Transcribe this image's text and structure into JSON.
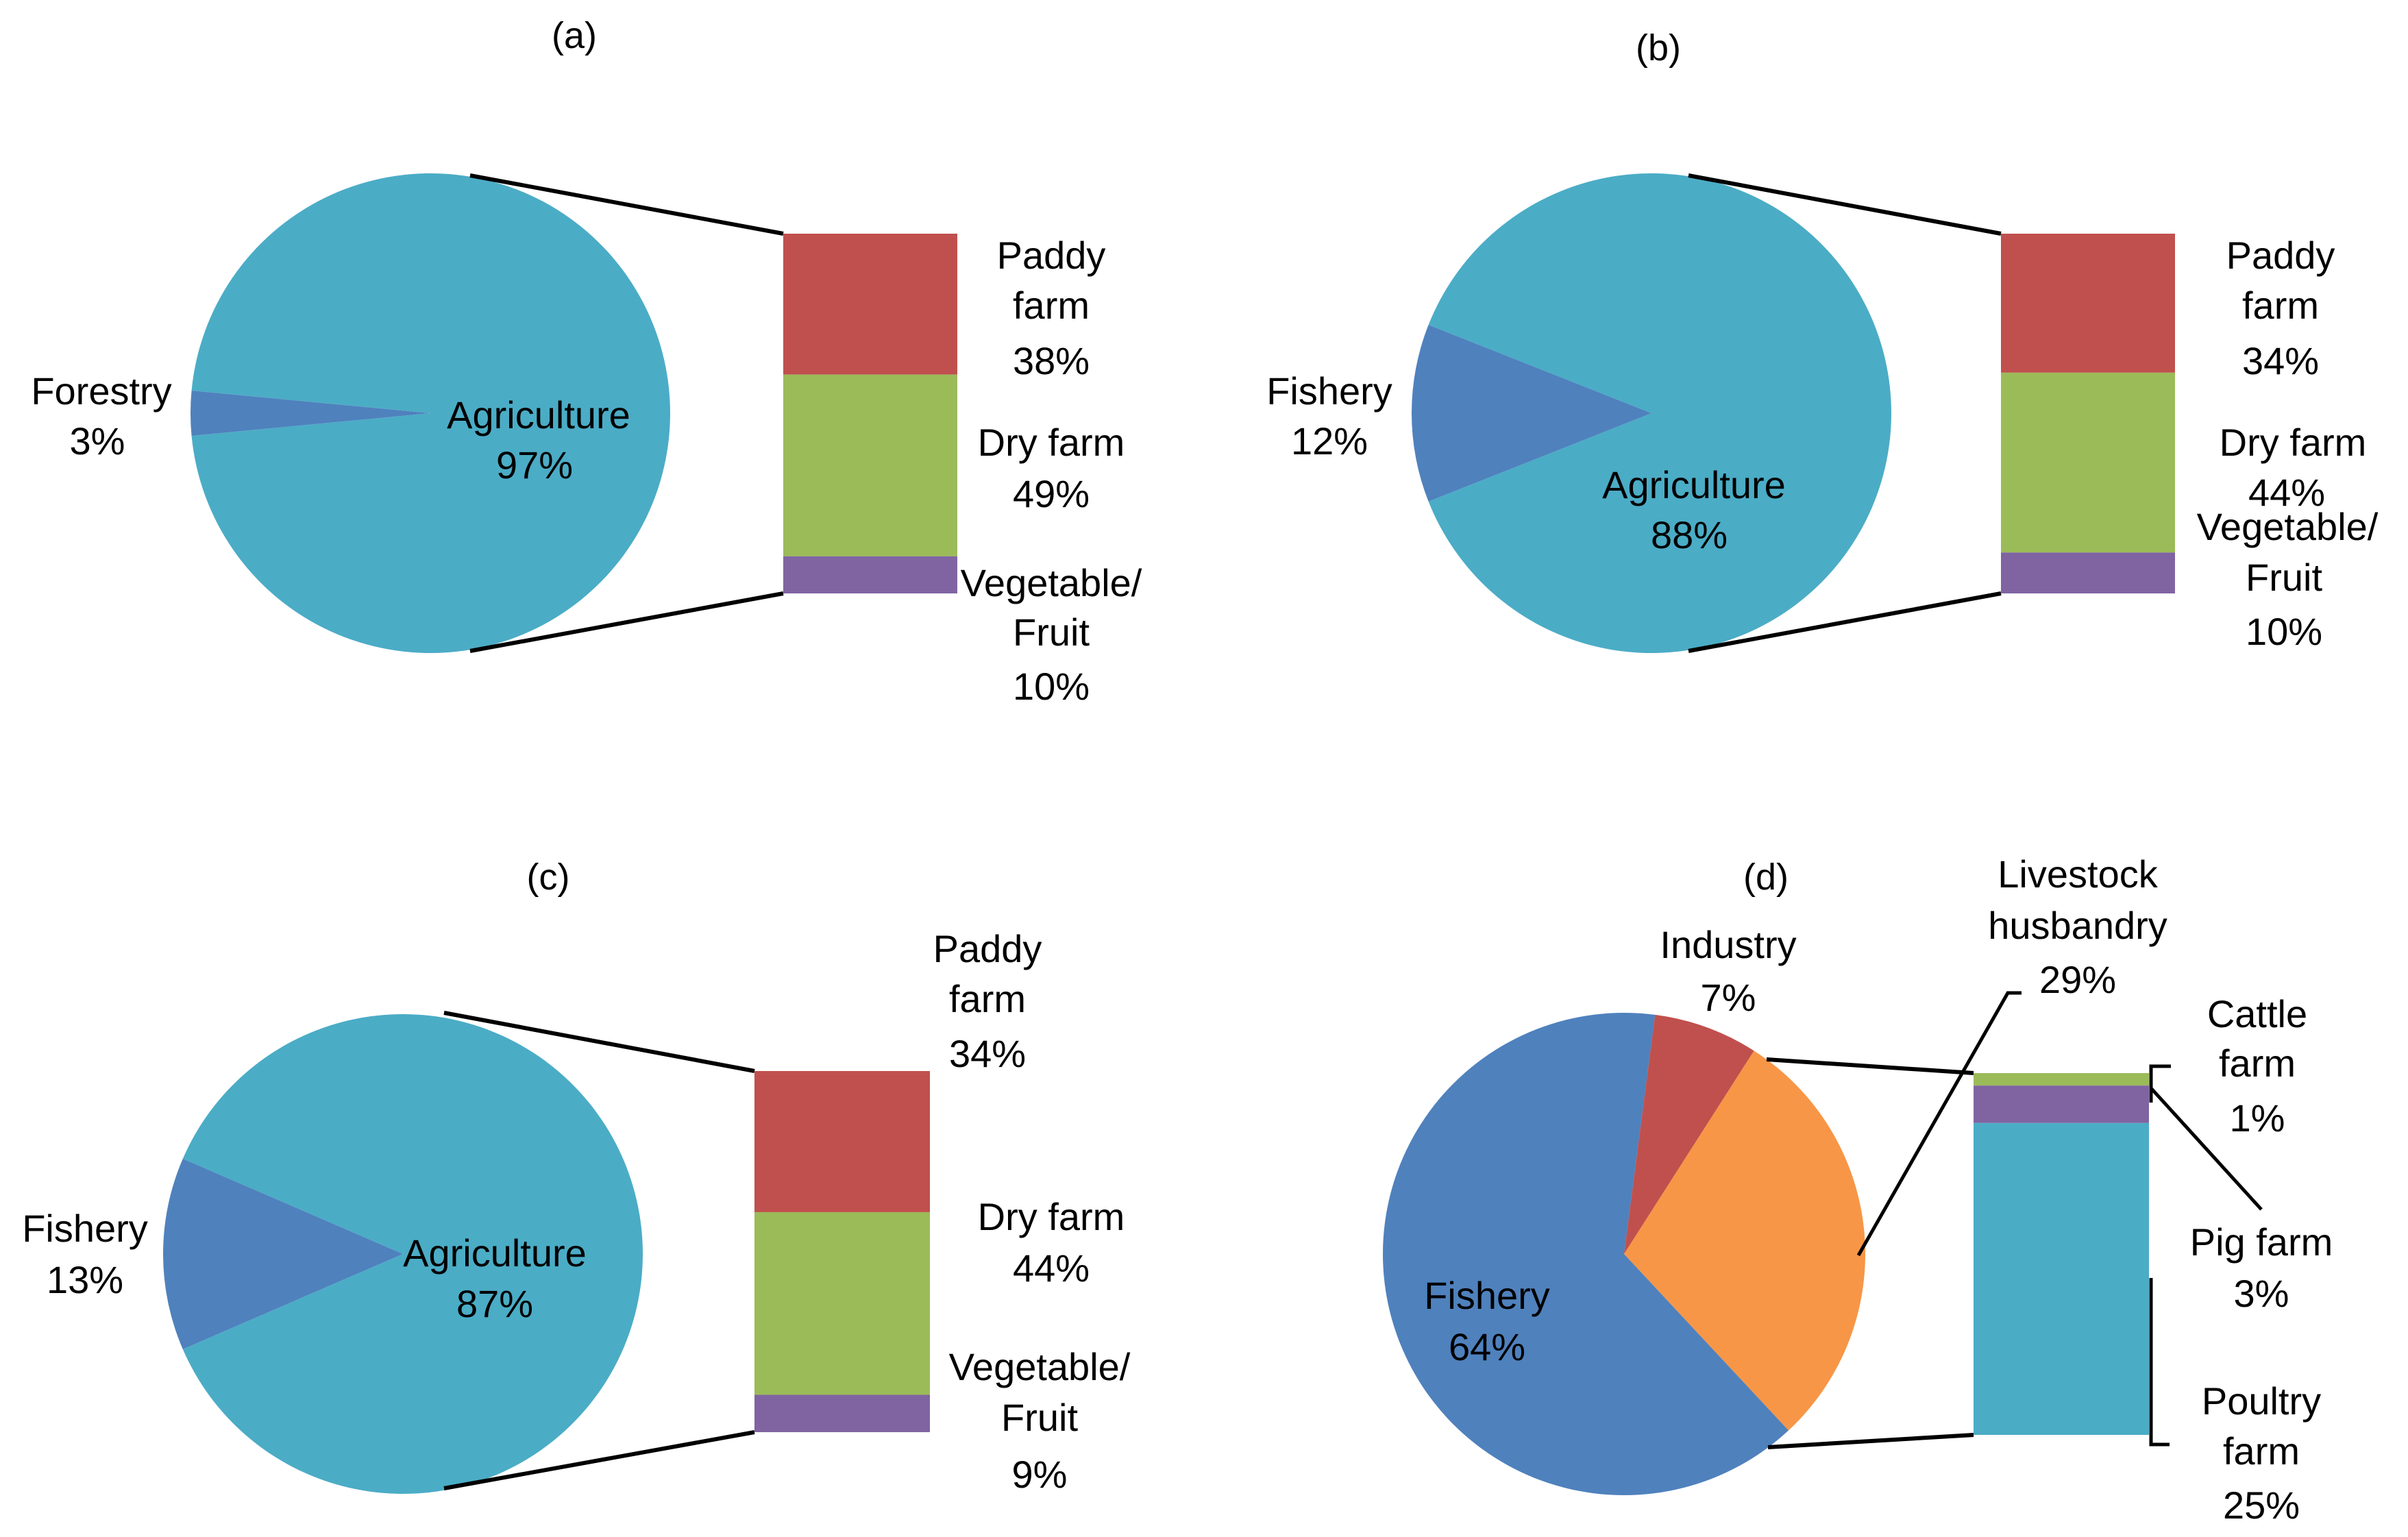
{
  "colors": {
    "agriculture": "#4BACC6",
    "secondary": "#4F81BD",
    "paddy": "#C0504D",
    "dry": "#9BBB59",
    "vegfruit": "#8064A2",
    "industry": "#C0504D",
    "livestock": "#F79646",
    "cattle": "#9BBB59",
    "pig": "#8064A2",
    "poultry": "#4BACC6"
  },
  "chart_data": [
    {
      "type": "pie",
      "subtype": "bar-of-pie",
      "panel_label": "(a)",
      "slices": [
        {
          "name": "Agriculture",
          "value": 97,
          "label": "Agriculture",
          "value_label": "97%"
        },
        {
          "name": "Forestry",
          "value": 3,
          "label": "Forestry",
          "value_label": "3%"
        }
      ],
      "breakdown_of": "Agriculture",
      "breakdown": [
        {
          "name": "Paddy farm",
          "value": 38,
          "label": "Paddy farm",
          "value_label": "38%"
        },
        {
          "name": "Dry farm",
          "value": 49,
          "label": "Dry farm",
          "value_label": "49%"
        },
        {
          "name": "Vegetable/ Fruit",
          "value": 10,
          "label": "Vegetable/ Fruit",
          "value_label": "10%"
        }
      ]
    },
    {
      "type": "pie",
      "subtype": "bar-of-pie",
      "panel_label": "(b)",
      "slices": [
        {
          "name": "Agriculture",
          "value": 88,
          "label": "Agriculture",
          "value_label": "88%"
        },
        {
          "name": "Fishery",
          "value": 12,
          "label": "Fishery",
          "value_label": "12%"
        }
      ],
      "breakdown_of": "Agriculture",
      "breakdown": [
        {
          "name": "Paddy farm",
          "value": 34,
          "label": "Paddy farm",
          "value_label": "34%"
        },
        {
          "name": "Dry farm",
          "value": 44,
          "label": "Dry farm",
          "value_label": "44%"
        },
        {
          "name": "Vegetable/ Fruit",
          "value": 10,
          "label": "Vegetable/ Fruit",
          "value_label": "10%"
        }
      ]
    },
    {
      "type": "pie",
      "subtype": "bar-of-pie",
      "panel_label": "(c)",
      "slices": [
        {
          "name": "Agriculture",
          "value": 87,
          "label": "Agriculture",
          "value_label": "87%"
        },
        {
          "name": "Fishery",
          "value": 13,
          "label": "Fishery",
          "value_label": "13%"
        }
      ],
      "breakdown_of": "Agriculture",
      "breakdown": [
        {
          "name": "Paddy farm",
          "value": 34,
          "label": "Paddy farm",
          "value_label": "34%"
        },
        {
          "name": "Dry farm",
          "value": 44,
          "label": "Dry farm",
          "value_label": "44%"
        },
        {
          "name": "Vegetable/ Fruit",
          "value": 9,
          "label": "Vegetable/ Fruit",
          "value_label": "9%"
        }
      ]
    },
    {
      "type": "pie",
      "subtype": "bar-of-pie",
      "panel_label": "(d)",
      "slices": [
        {
          "name": "Fishery",
          "value": 64,
          "label": "Fishery",
          "value_label": "64%"
        },
        {
          "name": "Industry",
          "value": 7,
          "label": "Industry",
          "value_label": "7%"
        },
        {
          "name": "Livestock husbandry",
          "value": 29,
          "label": "Livestock husbandry",
          "value_label": "29%"
        }
      ],
      "breakdown_of": "Livestock husbandry",
      "breakdown": [
        {
          "name": "Cattle farm",
          "value": 1,
          "label": "Cattle farm",
          "value_label": "1%"
        },
        {
          "name": "Pig farm",
          "value": 3,
          "label": "Pig farm",
          "value_label": "3%"
        },
        {
          "name": "Poultry farm",
          "value": 25,
          "label": "Poultry farm",
          "value_label": "25%"
        }
      ]
    }
  ]
}
